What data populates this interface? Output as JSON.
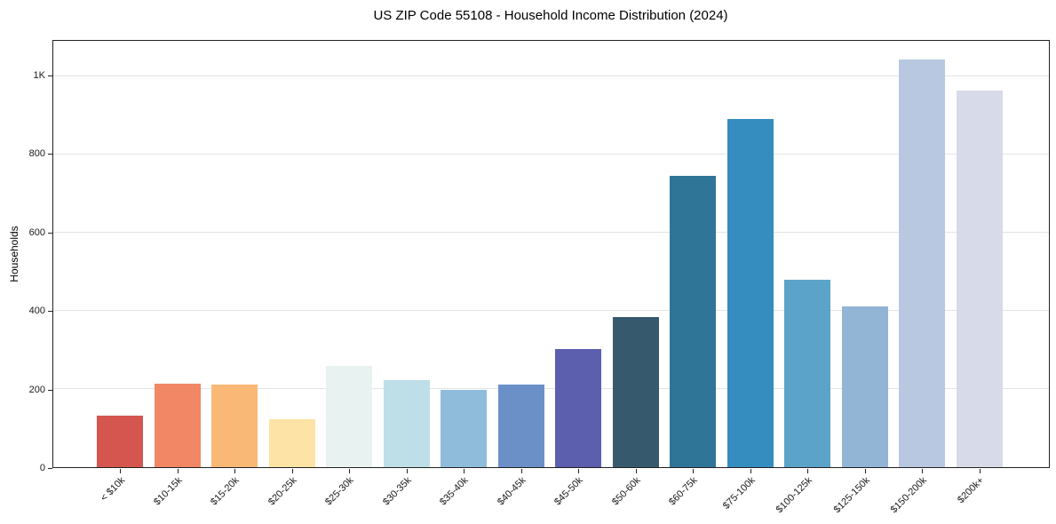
{
  "chart_data": {
    "type": "bar",
    "title": "US ZIP Code 55108 - Household Income Distribution (2024)",
    "xlabel": "",
    "ylabel": "Households",
    "categories": [
      "< $10k",
      "$10-15k",
      "$15-20k",
      "$20-25k",
      "$25-30k",
      "$30-35k",
      "$35-40k",
      "$40-45k",
      "$45-50k",
      "$50-60k",
      "$60-75k",
      "$75-100k",
      "$100-125k",
      "$125-150k",
      "$150-200k",
      "$200k+"
    ],
    "values": [
      131,
      212,
      210,
      122,
      258,
      222,
      197,
      211,
      302,
      383,
      742,
      886,
      478,
      410,
      1038,
      958
    ],
    "bar_colors": [
      "#d5564f",
      "#f18765",
      "#fab876",
      "#fde3a5",
      "#e8f2f1",
      "#bfdfe8",
      "#8fbcdb",
      "#6b90c8",
      "#5c5fae",
      "#36596d",
      "#2f7598",
      "#348cbf",
      "#5ba3c9",
      "#92b5d6",
      "#b8c8e0",
      "#d7dae8"
    ],
    "ylim": [
      0,
      1090
    ],
    "yticks": [
      {
        "value": 0,
        "label": "0"
      },
      {
        "value": 200,
        "label": "200"
      },
      {
        "value": 400,
        "label": "400"
      },
      {
        "value": 600,
        "label": "600"
      },
      {
        "value": 800,
        "label": "800"
      },
      {
        "value": 1000,
        "label": "1K"
      }
    ],
    "grid": "horizontal-only",
    "grid_color": "#e4e4e4",
    "legend": "none"
  }
}
